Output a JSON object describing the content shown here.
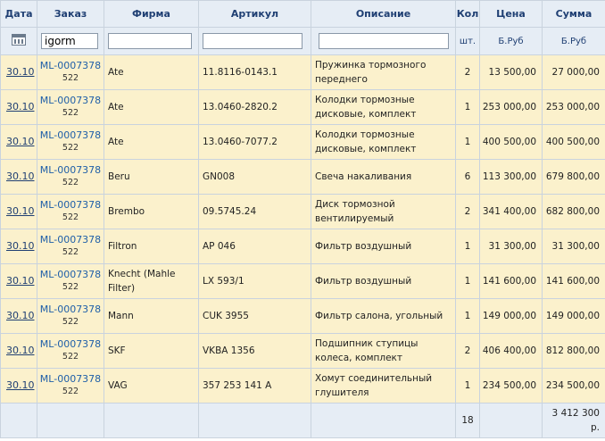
{
  "headers": {
    "date": "Дата",
    "order": "Заказ",
    "firm": "Фирма",
    "article": "Артикул",
    "description": "Описание",
    "qty": "Кол",
    "price": "Цена",
    "sum": "Сумма"
  },
  "filters": {
    "order_value": "igorm",
    "firm_value": "",
    "article_value": "",
    "description_value": "",
    "qty_unit": "шт.",
    "price_unit": "Б.Руб",
    "sum_unit": "Б.Руб"
  },
  "rows": [
    {
      "date": "30.10",
      "order": "ML-0007378",
      "sub": "522",
      "firm": "Ate",
      "article": "11.8116-0143.1",
      "desc": "Пружинка тормозного переднего",
      "qty": "2",
      "price": "13 500,00",
      "sum": "27 000,00"
    },
    {
      "date": "30.10",
      "order": "ML-0007378",
      "sub": "522",
      "firm": "Ate",
      "article": "13.0460-2820.2",
      "desc": "Колодки тормозные дисковые, комплект",
      "qty": "1",
      "price": "253 000,00",
      "sum": "253 000,00"
    },
    {
      "date": "30.10",
      "order": "ML-0007378",
      "sub": "522",
      "firm": "Ate",
      "article": "13.0460-7077.2",
      "desc": "Колодки тормозные дисковые, комплект",
      "qty": "1",
      "price": "400 500,00",
      "sum": "400 500,00"
    },
    {
      "date": "30.10",
      "order": "ML-0007378",
      "sub": "522",
      "firm": "Beru",
      "article": "GN008",
      "desc": "Свеча накаливания",
      "qty": "6",
      "price": "113 300,00",
      "sum": "679 800,00"
    },
    {
      "date": "30.10",
      "order": "ML-0007378",
      "sub": "522",
      "firm": "Brembo",
      "article": "09.5745.24",
      "desc": "Диск тормозной вентилируемый",
      "qty": "2",
      "price": "341 400,00",
      "sum": "682 800,00"
    },
    {
      "date": "30.10",
      "order": "ML-0007378",
      "sub": "522",
      "firm": "Filtron",
      "article": "AP 046",
      "desc": "Фильтр воздушный",
      "qty": "1",
      "price": "31 300,00",
      "sum": "31 300,00"
    },
    {
      "date": "30.10",
      "order": "ML-0007378",
      "sub": "522",
      "firm": "Knecht (Mahle Filter)",
      "article": "LX 593/1",
      "desc": "Фильтр воздушный",
      "qty": "1",
      "price": "141 600,00",
      "sum": "141 600,00"
    },
    {
      "date": "30.10",
      "order": "ML-0007378",
      "sub": "522",
      "firm": "Mann",
      "article": "CUK 3955",
      "desc": "Фильтр салона, угольный",
      "qty": "1",
      "price": "149 000,00",
      "sum": "149 000,00"
    },
    {
      "date": "30.10",
      "order": "ML-0007378",
      "sub": "522",
      "firm": "SKF",
      "article": "VKBA 1356",
      "desc": "Подшипник ступицы колеса, комплект",
      "qty": "2",
      "price": "406 400,00",
      "sum": "812 800,00"
    },
    {
      "date": "30.10",
      "order": "ML-0007378",
      "sub": "522",
      "firm": "VAG",
      "article": "357 253 141 A",
      "desc": "Хомут соединительный глушителя",
      "qty": "1",
      "price": "234 500,00",
      "sum": "234 500,00"
    }
  ],
  "totals": {
    "qty": "18",
    "sum": "3 412 300 р."
  },
  "icons": {
    "date_filter": "calendar-icon"
  },
  "colors": {
    "header_bg": "#e6edf5",
    "row_bg": "#fbf1cc",
    "header_text": "#1f3f73",
    "link": "#1f5fa8"
  }
}
